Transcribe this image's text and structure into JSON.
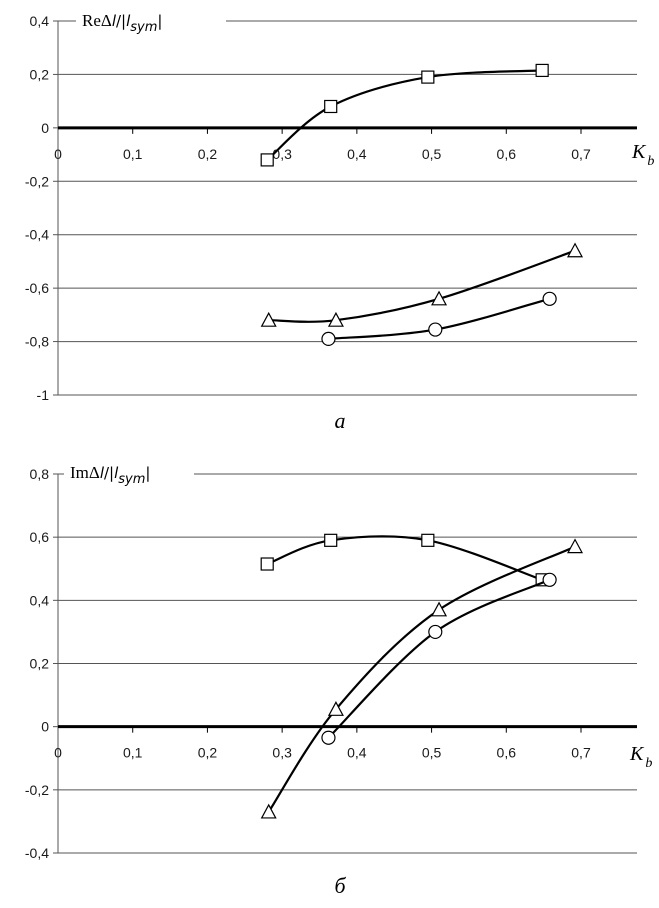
{
  "chart_data": [
    {
      "type": "line",
      "caption": "а",
      "ylabel": "ReΔl/|l_sym|",
      "ylabel_parts": {
        "main": "ReΔ",
        "l": "l",
        "slash": "/|",
        "l2": "l",
        "sub": "sym",
        "close": "|"
      },
      "xlabel_parts": {
        "main": "K",
        "sub": "b"
      },
      "xlim": [
        0,
        0.7
      ],
      "ylim": [
        -1,
        0.4
      ],
      "x_ticks": [
        "0",
        "0,1",
        "0,2",
        "0,3",
        "0,4",
        "0,5",
        "0,6",
        "0,7"
      ],
      "y_ticks": [
        "0,4",
        "0,2",
        "0",
        "-0,2",
        "-0,4",
        "-0,6",
        "-0,8",
        "-1"
      ],
      "x_tick_values": [
        0,
        0.1,
        0.2,
        0.3,
        0.4,
        0.5,
        0.6,
        0.7
      ],
      "y_tick_values": [
        0.4,
        0.2,
        0,
        -0.2,
        -0.4,
        -0.6,
        -0.8,
        -1
      ],
      "grid": true,
      "series": [
        {
          "marker": "square",
          "x": [
            0.28,
            0.365,
            0.495,
            0.648
          ],
          "y": [
            -0.12,
            0.08,
            0.19,
            0.215
          ]
        },
        {
          "marker": "triangle",
          "x": [
            0.282,
            0.372,
            0.51,
            0.692
          ],
          "y": [
            -0.72,
            -0.72,
            -0.64,
            -0.46
          ]
        },
        {
          "marker": "circle",
          "x": [
            0.362,
            0.505,
            0.658
          ],
          "y": [
            -0.79,
            -0.755,
            -0.64
          ]
        }
      ]
    },
    {
      "type": "line",
      "caption": "б",
      "ylabel": "ImΔl/|l_sym|",
      "ylabel_parts": {
        "main": "ImΔ",
        "l": "l",
        "slash": "/|",
        "l2": "l",
        "sub": "sym",
        "close": "|"
      },
      "xlabel_parts": {
        "main": "K",
        "sub": "b"
      },
      "xlim": [
        0,
        0.7
      ],
      "ylim": [
        -0.4,
        0.8
      ],
      "x_ticks": [
        "0",
        "0,1",
        "0,2",
        "0,3",
        "0,4",
        "0,5",
        "0,6",
        "0,7"
      ],
      "y_ticks": [
        "0,8",
        "0,6",
        "0,4",
        "0,2",
        "0",
        "-0,2",
        "-0,4"
      ],
      "x_tick_values": [
        0,
        0.1,
        0.2,
        0.3,
        0.4,
        0.5,
        0.6,
        0.7
      ],
      "y_tick_values": [
        0.8,
        0.6,
        0.4,
        0.2,
        0,
        -0.2,
        -0.4
      ],
      "grid": true,
      "series": [
        {
          "marker": "square",
          "x": [
            0.28,
            0.365,
            0.495,
            0.648
          ],
          "y": [
            0.515,
            0.59,
            0.59,
            0.465
          ]
        },
        {
          "marker": "triangle",
          "x": [
            0.282,
            0.372,
            0.51,
            0.692
          ],
          "y": [
            -0.27,
            0.055,
            0.37,
            0.57
          ]
        },
        {
          "marker": "circle",
          "x": [
            0.362,
            0.505,
            0.658
          ],
          "y": [
            -0.035,
            0.3,
            0.465
          ]
        }
      ]
    }
  ]
}
